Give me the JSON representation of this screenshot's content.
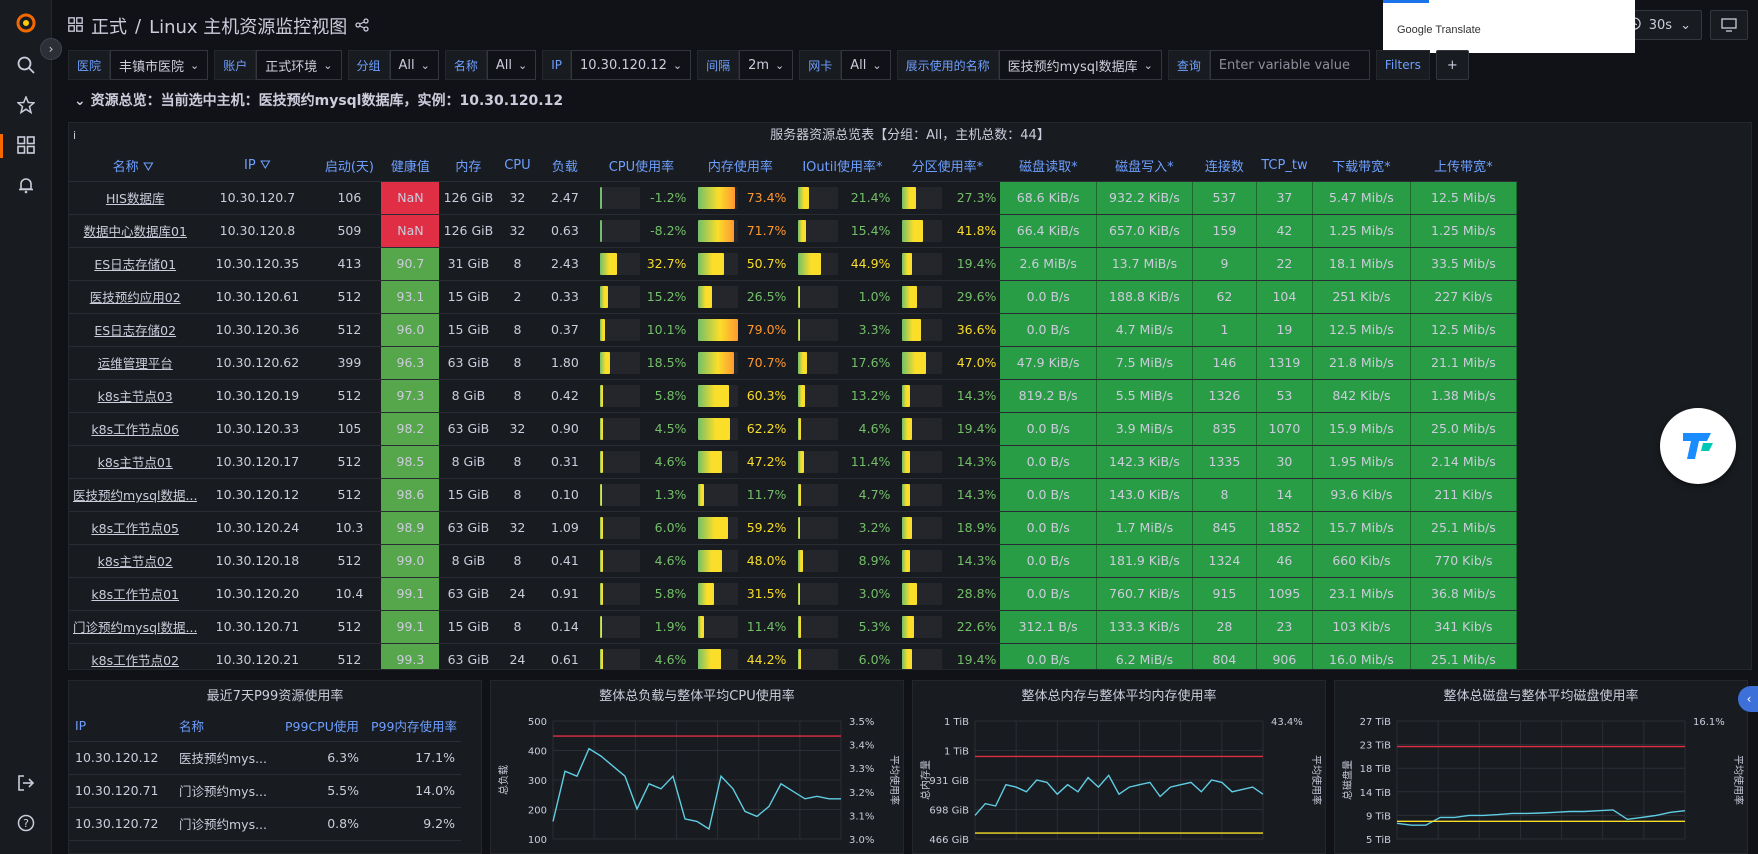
{
  "header": {
    "breadcrumb_folder": "正式",
    "separator": "/",
    "dashboard_title": "Linux 主机资源监控视图",
    "refresh_interval": "30s"
  },
  "translate_popup": {
    "label": "Google Translate"
  },
  "variables": [
    {
      "label": "医院",
      "value": "丰镇市医院"
    },
    {
      "label": "账户",
      "value": "正式环境"
    },
    {
      "label": "分组",
      "value": "All"
    },
    {
      "label": "名称",
      "value": "All"
    },
    {
      "label": "IP",
      "value": "10.30.120.12"
    },
    {
      "label": "间隔",
      "value": "2m"
    },
    {
      "label": "网卡",
      "value": "All"
    },
    {
      "label": "展示使用的名称",
      "value": "医技预约mysql数据库"
    }
  ],
  "filter": {
    "label": "查询",
    "placeholder": "Enter variable value",
    "filters_button": "Filters",
    "add_button": "+"
  },
  "row_title": "资源总览：当前选中主机：医技预约mysql数据库，实例：10.30.120.12",
  "main_table": {
    "title": "服务器资源总览表【分组：All，主机总数：44】",
    "columns": [
      "名称",
      "IP",
      "启动(天)",
      "健康值",
      "内存",
      "CPU",
      "负载",
      "CPU使用率",
      "内存使用率",
      "IOutil使用率*",
      "分区使用率*",
      "磁盘读取*",
      "磁盘写入*",
      "连接数",
      "TCP_tw",
      "下载带宽*",
      "上传带宽*"
    ],
    "rows": [
      {
        "name": "HIS数据库",
        "ip": "10.30.120.7",
        "uptime": "106",
        "health": "NaN",
        "mem": "126 GiB",
        "cpu": "32",
        "load": "2.47",
        "cpu_pct": "-1.2%",
        "cpu_v": -1.2,
        "mem_pct": "73.4%",
        "mem_v": 73.4,
        "io_pct": "21.4%",
        "io_v": 21.4,
        "part_pct": "27.3%",
        "part_v": 27.3,
        "disk_read": "68.6 KiB/s",
        "disk_write": "932.2 KiB/s",
        "conn": "537",
        "tcp_tw": "37",
        "down": "5.47 Mib/s",
        "up": "12.5 Mib/s"
      },
      {
        "name": "数据中心数据库01",
        "ip": "10.30.120.8",
        "uptime": "509",
        "health": "NaN",
        "mem": "126 GiB",
        "cpu": "32",
        "load": "0.63",
        "cpu_pct": "-8.2%",
        "cpu_v": -8.2,
        "mem_pct": "71.7%",
        "mem_v": 71.7,
        "io_pct": "15.4%",
        "io_v": 15.4,
        "part_pct": "41.8%",
        "part_v": 41.8,
        "disk_read": "66.4 KiB/s",
        "disk_write": "657.0 KiB/s",
        "conn": "159",
        "tcp_tw": "42",
        "down": "1.25 Mib/s",
        "up": "1.25 Mib/s"
      },
      {
        "name": "ES日志存储01",
        "ip": "10.30.120.35",
        "uptime": "413",
        "health": "90.7",
        "mem": "31 GiB",
        "cpu": "8",
        "load": "2.43",
        "cpu_pct": "32.7%",
        "cpu_v": 32.7,
        "mem_pct": "50.7%",
        "mem_v": 50.7,
        "io_pct": "44.9%",
        "io_v": 44.9,
        "part_pct": "19.4%",
        "part_v": 19.4,
        "disk_read": "2.6 MiB/s",
        "disk_write": "13.7 MiB/s",
        "conn": "9",
        "tcp_tw": "22",
        "down": "18.1 Mib/s",
        "up": "33.5 Mib/s"
      },
      {
        "name": "医技预约应用02",
        "ip": "10.30.120.61",
        "uptime": "512",
        "health": "93.1",
        "mem": "15 GiB",
        "cpu": "2",
        "load": "0.33",
        "cpu_pct": "15.2%",
        "cpu_v": 15.2,
        "mem_pct": "26.5%",
        "mem_v": 26.5,
        "io_pct": "1.0%",
        "io_v": 1.0,
        "part_pct": "29.6%",
        "part_v": 29.6,
        "disk_read": "0.0 B/s",
        "disk_write": "188.8 KiB/s",
        "conn": "62",
        "tcp_tw": "104",
        "down": "251 Kib/s",
        "up": "227 Kib/s"
      },
      {
        "name": "ES日志存储02",
        "ip": "10.30.120.36",
        "uptime": "512",
        "health": "96.0",
        "mem": "15 GiB",
        "cpu": "8",
        "load": "0.37",
        "cpu_pct": "10.1%",
        "cpu_v": 10.1,
        "mem_pct": "79.0%",
        "mem_v": 79.0,
        "io_pct": "3.3%",
        "io_v": 3.3,
        "part_pct": "36.6%",
        "part_v": 36.6,
        "disk_read": "0.0 B/s",
        "disk_write": "4.7 MiB/s",
        "conn": "1",
        "tcp_tw": "19",
        "down": "12.5 Mib/s",
        "up": "12.5 Mib/s"
      },
      {
        "name": "运维管理平台",
        "ip": "10.30.120.62",
        "uptime": "399",
        "health": "96.3",
        "mem": "63 GiB",
        "cpu": "8",
        "load": "1.80",
        "cpu_pct": "18.5%",
        "cpu_v": 18.5,
        "mem_pct": "70.7%",
        "mem_v": 70.7,
        "io_pct": "17.6%",
        "io_v": 17.6,
        "part_pct": "47.0%",
        "part_v": 47.0,
        "disk_read": "47.9 KiB/s",
        "disk_write": "7.5 MiB/s",
        "conn": "146",
        "tcp_tw": "1319",
        "down": "21.8 Mib/s",
        "up": "21.1 Mib/s"
      },
      {
        "name": "k8s主节点03",
        "ip": "10.30.120.19",
        "uptime": "512",
        "health": "97.3",
        "mem": "8 GiB",
        "cpu": "8",
        "load": "0.42",
        "cpu_pct": "5.8%",
        "cpu_v": 5.8,
        "mem_pct": "60.3%",
        "mem_v": 60.3,
        "io_pct": "13.2%",
        "io_v": 13.2,
        "part_pct": "14.3%",
        "part_v": 14.3,
        "disk_read": "819.2 B/s",
        "disk_write": "5.5 MiB/s",
        "conn": "1326",
        "tcp_tw": "53",
        "down": "842 Kib/s",
        "up": "1.38 Mib/s"
      },
      {
        "name": "k8s工作节点06",
        "ip": "10.30.120.33",
        "uptime": "105",
        "health": "98.2",
        "mem": "63 GiB",
        "cpu": "32",
        "load": "0.90",
        "cpu_pct": "4.5%",
        "cpu_v": 4.5,
        "mem_pct": "62.2%",
        "mem_v": 62.2,
        "io_pct": "4.6%",
        "io_v": 4.6,
        "part_pct": "19.4%",
        "part_v": 19.4,
        "disk_read": "0.0 B/s",
        "disk_write": "3.9 MiB/s",
        "conn": "835",
        "tcp_tw": "1070",
        "down": "15.9 Mib/s",
        "up": "25.0 Mib/s"
      },
      {
        "name": "k8s主节点01",
        "ip": "10.30.120.17",
        "uptime": "512",
        "health": "98.5",
        "mem": "8 GiB",
        "cpu": "8",
        "load": "0.31",
        "cpu_pct": "4.6%",
        "cpu_v": 4.6,
        "mem_pct": "47.2%",
        "mem_v": 47.2,
        "io_pct": "11.4%",
        "io_v": 11.4,
        "part_pct": "14.3%",
        "part_v": 14.3,
        "disk_read": "0.0 B/s",
        "disk_write": "142.3 KiB/s",
        "conn": "1335",
        "tcp_tw": "30",
        "down": "1.95 Mib/s",
        "up": "2.14 Mib/s"
      },
      {
        "name": "医技预约mysql数据...",
        "ip": "10.30.120.12",
        "uptime": "512",
        "health": "98.6",
        "mem": "15 GiB",
        "cpu": "8",
        "load": "0.10",
        "cpu_pct": "1.3%",
        "cpu_v": 1.3,
        "mem_pct": "11.7%",
        "mem_v": 11.7,
        "io_pct": "4.7%",
        "io_v": 4.7,
        "part_pct": "14.3%",
        "part_v": 14.3,
        "disk_read": "0.0 B/s",
        "disk_write": "143.0 KiB/s",
        "conn": "8",
        "tcp_tw": "14",
        "down": "93.6 Kib/s",
        "up": "211 Kib/s"
      },
      {
        "name": "k8s工作节点05",
        "ip": "10.30.120.24",
        "uptime": "10.3",
        "health": "98.9",
        "mem": "63 GiB",
        "cpu": "32",
        "load": "1.09",
        "cpu_pct": "6.0%",
        "cpu_v": 6.0,
        "mem_pct": "59.2%",
        "mem_v": 59.2,
        "io_pct": "3.2%",
        "io_v": 3.2,
        "part_pct": "18.9%",
        "part_v": 18.9,
        "disk_read": "0.0 B/s",
        "disk_write": "1.7 MiB/s",
        "conn": "845",
        "tcp_tw": "1852",
        "down": "15.7 Mib/s",
        "up": "25.1 Mib/s"
      },
      {
        "name": "k8s主节点02",
        "ip": "10.30.120.18",
        "uptime": "512",
        "health": "99.0",
        "mem": "8 GiB",
        "cpu": "8",
        "load": "0.41",
        "cpu_pct": "4.6%",
        "cpu_v": 4.6,
        "mem_pct": "48.0%",
        "mem_v": 48.0,
        "io_pct": "8.9%",
        "io_v": 8.9,
        "part_pct": "14.3%",
        "part_v": 14.3,
        "disk_read": "0.0 B/s",
        "disk_write": "181.9 KiB/s",
        "conn": "1324",
        "tcp_tw": "46",
        "down": "660 Kib/s",
        "up": "770 Kib/s"
      },
      {
        "name": "k8s工作节点01",
        "ip": "10.30.120.20",
        "uptime": "10.4",
        "health": "99.1",
        "mem": "63 GiB",
        "cpu": "24",
        "load": "0.91",
        "cpu_pct": "5.8%",
        "cpu_v": 5.8,
        "mem_pct": "31.5%",
        "mem_v": 31.5,
        "io_pct": "3.0%",
        "io_v": 3.0,
        "part_pct": "28.8%",
        "part_v": 28.8,
        "disk_read": "0.0 B/s",
        "disk_write": "760.7 KiB/s",
        "conn": "915",
        "tcp_tw": "1095",
        "down": "23.1 Mib/s",
        "up": "36.8 Mib/s"
      },
      {
        "name": "门诊预约mysql数据...",
        "ip": "10.30.120.71",
        "uptime": "512",
        "health": "99.1",
        "mem": "15 GiB",
        "cpu": "8",
        "load": "0.14",
        "cpu_pct": "1.9%",
        "cpu_v": 1.9,
        "mem_pct": "11.4%",
        "mem_v": 11.4,
        "io_pct": "5.3%",
        "io_v": 5.3,
        "part_pct": "22.6%",
        "part_v": 22.6,
        "disk_read": "312.1 B/s",
        "disk_write": "133.3 KiB/s",
        "conn": "28",
        "tcp_tw": "23",
        "down": "103 Kib/s",
        "up": "341 Kib/s"
      },
      {
        "name": "k8s工作节点02",
        "ip": "10.30.120.21",
        "uptime": "512",
        "health": "99.3",
        "mem": "63 GiB",
        "cpu": "24",
        "load": "0.61",
        "cpu_pct": "4.6%",
        "cpu_v": 4.6,
        "mem_pct": "44.2%",
        "mem_v": 44.2,
        "io_pct": "6.0%",
        "io_v": 6.0,
        "part_pct": "19.4%",
        "part_v": 19.4,
        "disk_read": "0.0 B/s",
        "disk_write": "6.2 MiB/s",
        "conn": "804",
        "tcp_tw": "906",
        "down": "16.0 Mib/s",
        "up": "25.1 Mib/s"
      }
    ]
  },
  "p99_panel": {
    "title": "最近7天P99资源使用率",
    "columns": [
      "IP",
      "名称",
      "P99CPU使用",
      "P99内存使用率"
    ],
    "rows": [
      {
        "ip": "10.30.120.12",
        "name": "医技预约mys...",
        "cpu": "6.3%",
        "mem": "17.1%"
      },
      {
        "ip": "10.30.120.71",
        "name": "门诊预约mys...",
        "cpu": "5.5%",
        "mem": "14.0%"
      },
      {
        "ip": "10.30.120.72",
        "name": "门诊预约mys...",
        "cpu": "0.8%",
        "mem": "9.2%"
      }
    ]
  },
  "chart_data": [
    {
      "type": "line",
      "title": "整体总负载与整体平均CPU使用率",
      "ylabel": "总负载",
      "y2label": "平均使用率",
      "yticks": [
        "500",
        "400",
        "300",
        "200",
        "100"
      ],
      "y2ticks": [
        "3.5%",
        "3.4%",
        "3.3%",
        "3.2%",
        "3.1%",
        "3.0%"
      ],
      "ylim": [
        50,
        520
      ],
      "series": [
        {
          "values": [
            120,
            320,
            300,
            410,
            380,
            340,
            300,
            170,
            270,
            250,
            300,
            130,
            120,
            90,
            300,
            250,
            160,
            140,
            180,
            270,
            240,
            210,
            220,
            210,
            210
          ]
        },
        {
          "values": [
            460,
            460,
            460,
            460,
            460,
            460,
            460,
            460,
            460,
            460,
            460,
            460,
            460,
            460,
            460,
            460,
            460,
            460,
            460,
            460,
            460,
            460,
            460,
            460,
            460
          ]
        }
      ],
      "colors": [
        "#5fcde4",
        "#e02f44"
      ]
    },
    {
      "type": "line",
      "title": "整体总内存与整体平均内存使用率",
      "ylabel": "总内存量",
      "y2label": "平均使用率",
      "yticks": [
        "1 TiB",
        "1 TiB",
        "931 GiB",
        "698 GiB",
        "466 GiB"
      ],
      "y2ticks": [
        "43.4%"
      ],
      "ylim": [
        0,
        100
      ],
      "series": [
        {
          "values": [
            20,
            30,
            28,
            46,
            44,
            40,
            50,
            48,
            38,
            46,
            40,
            52,
            44,
            54,
            38,
            44,
            46,
            48,
            36,
            44,
            46,
            48,
            40,
            50,
            48,
            40,
            42,
            44,
            38
          ]
        },
        {
          "values": [
            70,
            70,
            70,
            70,
            70,
            70,
            70,
            70,
            70,
            70,
            70,
            70,
            70,
            70,
            70,
            70,
            70,
            70,
            70,
            70,
            70,
            70,
            70,
            70,
            70,
            70,
            70,
            70,
            70
          ]
        },
        {
          "values": [
            5,
            5,
            5,
            5,
            5,
            5,
            5,
            5,
            5,
            5,
            5,
            5,
            5,
            5,
            5,
            5,
            5,
            5,
            5,
            5,
            5,
            5,
            5,
            5,
            5,
            5,
            5,
            5,
            5
          ]
        }
      ],
      "colors": [
        "#5fcde4",
        "#e02f44",
        "#fade2a"
      ]
    },
    {
      "type": "line",
      "title": "整体总磁盘与整体平均磁盘使用率",
      "ylabel": "总磁盘量",
      "y2label": "平均使用率",
      "yticks": [
        "27 TiB",
        "23 TiB",
        "18 TiB",
        "14 TiB",
        "9 TiB",
        "5 TiB"
      ],
      "y2ticks": [
        "16.1%"
      ],
      "ylim": [
        0,
        30
      ],
      "series": [
        {
          "values": [
            4,
            3.5,
            3.5,
            5.5,
            5.5,
            6,
            6,
            6.2,
            6.5,
            6.5,
            6.6,
            6.8,
            7,
            7,
            7.2,
            7.4,
            5,
            5.5,
            6,
            6.8,
            7.2
          ]
        },
        {
          "values": [
            23.5,
            23.5,
            23.5,
            23.5,
            23.5,
            23.5,
            23.5,
            23.5,
            23.5,
            23.5,
            23.5,
            23.5,
            23.5,
            23.5,
            23.5,
            23.5,
            23.5,
            23.5,
            23.5,
            23.5,
            23.5
          ]
        },
        {
          "values": [
            4.5,
            4.5,
            4.5,
            4.5,
            4.5,
            4.5,
            4.5,
            4.5,
            4.5,
            4.5,
            4.5,
            4.5,
            4.5,
            4.5,
            4.5,
            4.5,
            4.5,
            4.5,
            4.5,
            4.5,
            4.5
          ]
        }
      ],
      "colors": [
        "#5fcde4",
        "#e02f44",
        "#fade2a"
      ]
    }
  ],
  "colors": {
    "healthy_green": "#299c46",
    "nan_red": "#e02f44",
    "link_blue": "#6e9fff",
    "panel_bg": "#181b1f",
    "page_bg": "#111217"
  },
  "icons": {
    "logo": "grafana-logo-icon",
    "search": "search-icon",
    "starred": "star-icon",
    "dashboards": "dashboards-icon",
    "alerting": "bell-icon",
    "signout": "signout-icon",
    "help": "help-icon",
    "share": "share-icon",
    "tv": "tv-mode-icon"
  }
}
